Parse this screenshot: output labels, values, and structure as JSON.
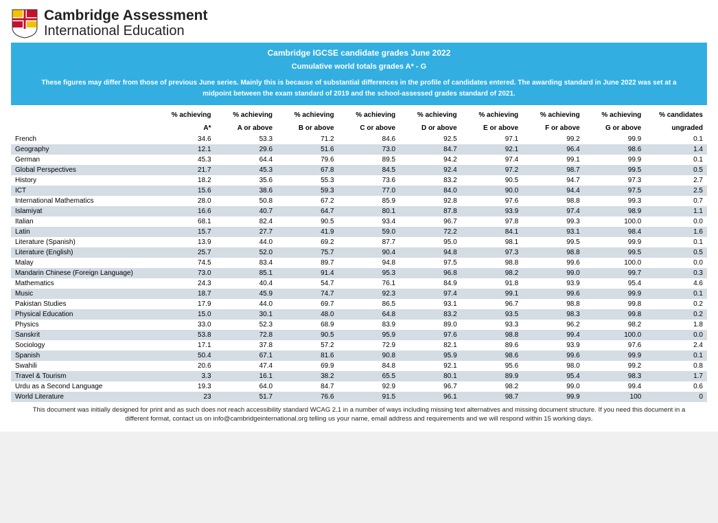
{
  "logo": {
    "line1": "Cambridge Assessment",
    "line2": "International Education",
    "shield_colors": {
      "red": "#c8102e",
      "gold": "#f3c300",
      "white": "#ffffff",
      "outline": "#333333"
    }
  },
  "banner": {
    "bg": "#33aee0",
    "text_color": "#ffffff",
    "title": "Cambridge IGCSE candidate grades June 2022",
    "subtitle": "Cumulative world totals grades A* - G",
    "note": "These figures may differ from those of previous June series. Mainly this is because of substantial differences in the profile of candidates entered. The awarding standard in June 2022 was set at a midpoint between the exam standard of 2019 and the school-assessed grades standard of 2021."
  },
  "table": {
    "alt_row_bg": "#d4dce4",
    "font_size": 10,
    "columns": [
      {
        "top": "",
        "bottom": ""
      },
      {
        "top": "% achieving",
        "bottom": "A*"
      },
      {
        "top": "% achieving",
        "bottom": "A or above"
      },
      {
        "top": "% achieving",
        "bottom": "B or above"
      },
      {
        "top": "% achieving",
        "bottom": "C or above"
      },
      {
        "top": "% achieving",
        "bottom": "D or above"
      },
      {
        "top": "% achieving",
        "bottom": "E or above"
      },
      {
        "top": "% achieving",
        "bottom": "F or above"
      },
      {
        "top": "% achieving",
        "bottom": "G or above"
      },
      {
        "top": "% candidates",
        "bottom": "ungraded"
      }
    ],
    "rows": [
      [
        "French",
        "34.6",
        "53.3",
        "71.2",
        "84.6",
        "92.5",
        "97.1",
        "99.2",
        "99.9",
        "0.1"
      ],
      [
        "Geography",
        "12.1",
        "29.6",
        "51.6",
        "73.0",
        "84.7",
        "92.1",
        "96.4",
        "98.6",
        "1.4"
      ],
      [
        "German",
        "45.3",
        "64.4",
        "79.6",
        "89.5",
        "94.2",
        "97.4",
        "99.1",
        "99.9",
        "0.1"
      ],
      [
        "Global Perspectives",
        "21.7",
        "45.3",
        "67.8",
        "84.5",
        "92.4",
        "97.2",
        "98.7",
        "99.5",
        "0.5"
      ],
      [
        "History",
        "18.2",
        "35.6",
        "55.3",
        "73.6",
        "83.2",
        "90.5",
        "94.7",
        "97.3",
        "2.7"
      ],
      [
        "ICT",
        "15.6",
        "38.6",
        "59.3",
        "77.0",
        "84.0",
        "90.0",
        "94.4",
        "97.5",
        "2.5"
      ],
      [
        "International Mathematics",
        "28.0",
        "50.8",
        "67.2",
        "85.9",
        "92.8",
        "97.6",
        "98.8",
        "99.3",
        "0.7"
      ],
      [
        "Islamiyat",
        "16.6",
        "40.7",
        "64.7",
        "80.1",
        "87.8",
        "93.9",
        "97.4",
        "98.9",
        "1.1"
      ],
      [
        "Italian",
        "68.1",
        "82.4",
        "90.5",
        "93.4",
        "96.7",
        "97.8",
        "99.3",
        "100.0",
        "0.0"
      ],
      [
        "Latin",
        "15.7",
        "27.7",
        "41.9",
        "59.0",
        "72.2",
        "84.1",
        "93.1",
        "98.4",
        "1.6"
      ],
      [
        "Literature (Spanish)",
        "13.9",
        "44.0",
        "69.2",
        "87.7",
        "95.0",
        "98.1",
        "99.5",
        "99.9",
        "0.1"
      ],
      [
        "Literature (English)",
        "25.7",
        "52.0",
        "75.7",
        "90.4",
        "94.8",
        "97.3",
        "98.8",
        "99.5",
        "0.5"
      ],
      [
        "Malay",
        "74.5",
        "83.4",
        "89.7",
        "94.8",
        "97.5",
        "98.8",
        "99.6",
        "100.0",
        "0.0"
      ],
      [
        "Mandarin Chinese (Foreign Language)",
        "73.0",
        "85.1",
        "91.4",
        "95.3",
        "96.8",
        "98.2",
        "99.0",
        "99.7",
        "0.3"
      ],
      [
        "Mathematics",
        "24.3",
        "40.4",
        "54.7",
        "76.1",
        "84.9",
        "91.8",
        "93.9",
        "95.4",
        "4.6"
      ],
      [
        "Music",
        "18.7",
        "45.9",
        "74.7",
        "92.3",
        "97.4",
        "99.1",
        "99.6",
        "99.9",
        "0.1"
      ],
      [
        "Pakistan Studies",
        "17.9",
        "44.0",
        "69.7",
        "86.5",
        "93.1",
        "96.7",
        "98.8",
        "99.8",
        "0.2"
      ],
      [
        "Physical Education",
        "15.0",
        "30.1",
        "48.0",
        "64.8",
        "83.2",
        "93.5",
        "98.3",
        "99.8",
        "0.2"
      ],
      [
        "Physics",
        "33.0",
        "52.3",
        "68.9",
        "83.9",
        "89.0",
        "93.3",
        "96.2",
        "98.2",
        "1.8"
      ],
      [
        "Sanskrit",
        "53.8",
        "72.8",
        "90.5",
        "95.9",
        "97.6",
        "98.8",
        "99.4",
        "100.0",
        "0.0"
      ],
      [
        "Sociology",
        "17.1",
        "37.8",
        "57.2",
        "72.9",
        "82.1",
        "89.6",
        "93.9",
        "97.6",
        "2.4"
      ],
      [
        "Spanish",
        "50.4",
        "67.1",
        "81.6",
        "90.8",
        "95.9",
        "98.6",
        "99.6",
        "99.9",
        "0.1"
      ],
      [
        "Swahili",
        "20.6",
        "47.4",
        "69.9",
        "84.8",
        "92.1",
        "95.6",
        "98.0",
        "99.2",
        "0.8"
      ],
      [
        "Travel & Tourism",
        "3.3",
        "16.1",
        "38.2",
        "65.5",
        "80.1",
        "89.9",
        "95.4",
        "98.3",
        "1.7"
      ],
      [
        "Urdu as a Second Language",
        "19.3",
        "64.0",
        "84.7",
        "92.9",
        "96.7",
        "98.2",
        "99.0",
        "99.4",
        "0.6"
      ],
      [
        "World Literature",
        "23",
        "51.7",
        "76.6",
        "91.5",
        "96.1",
        "98.7",
        "99.9",
        "100",
        "0"
      ]
    ]
  },
  "footnote": "This document was initially designed for print and as such does not reach accessibility standard WCAG 2.1 in a number of ways including missing text alternatives and missing document structure. If you need this document in a different format, contact us on info@cambridgeinternational.org telling us your name, email address and requirements and we will respond within 15 working days."
}
